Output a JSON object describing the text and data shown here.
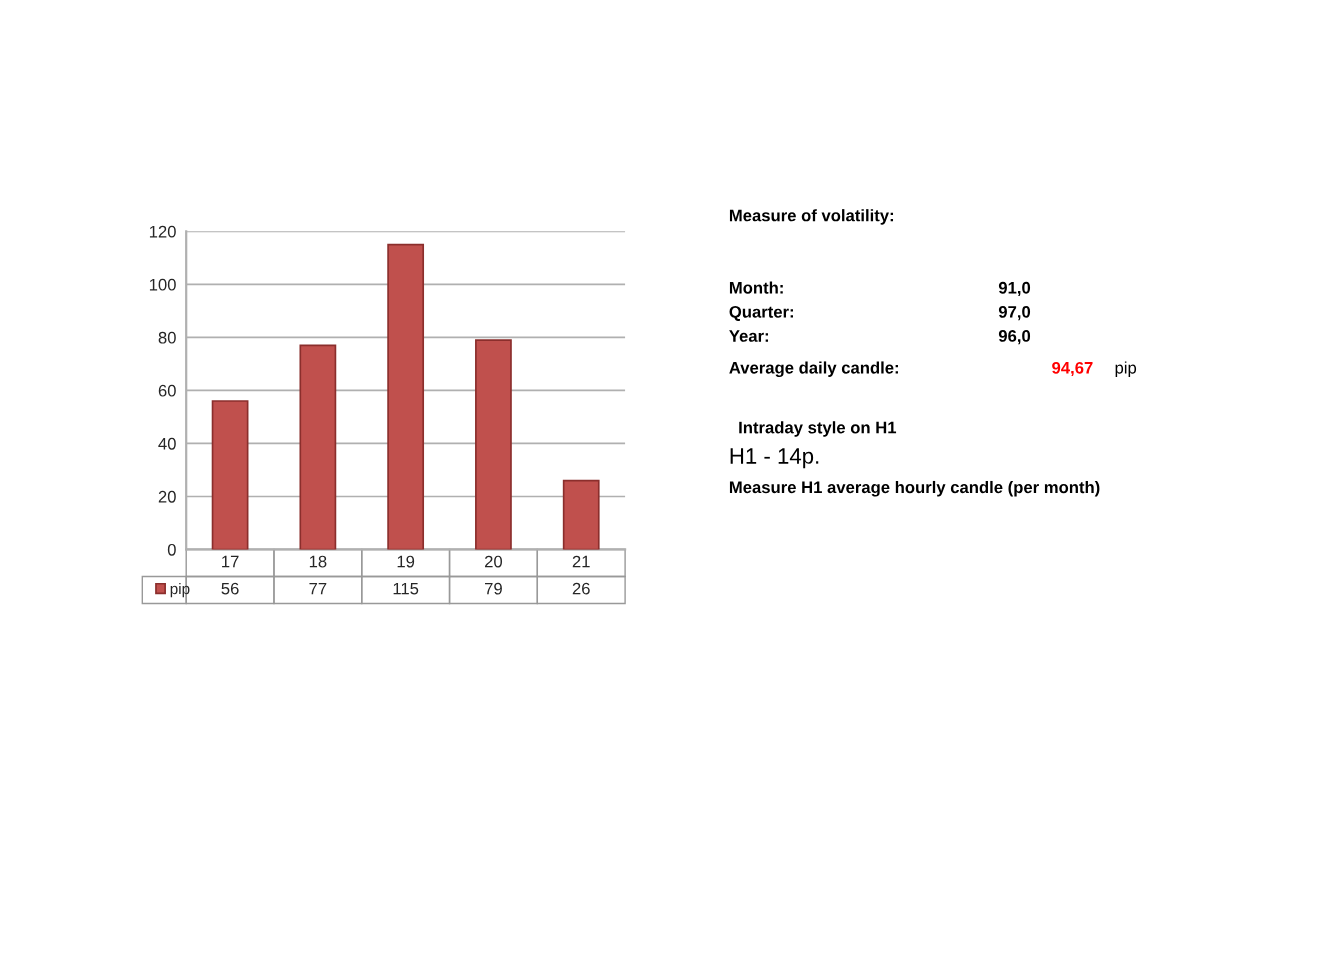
{
  "chart_data": {
    "type": "bar",
    "categories": [
      "17",
      "18",
      "19",
      "20",
      "21"
    ],
    "series": [
      {
        "name": "pip",
        "color": "#c0504d",
        "values": [
          56,
          77,
          115,
          79,
          26
        ]
      }
    ],
    "ylim": [
      0,
      120
    ],
    "yticks": [
      0,
      20,
      40,
      60,
      80,
      100,
      120
    ],
    "grid": "y",
    "data_labels": true,
    "legend": "bottom",
    "annotations": [
      "Measure of volatility:",
      "Month:",
      "91,0",
      "Quarter:",
      "97,0",
      "Year:",
      "96,0",
      "Average daily candle:",
      "94,67",
      "pip",
      "Intraday style on H1",
      "H1 - 14p.",
      "Measure H1 average hourly candle (per month)"
    ]
  }
}
